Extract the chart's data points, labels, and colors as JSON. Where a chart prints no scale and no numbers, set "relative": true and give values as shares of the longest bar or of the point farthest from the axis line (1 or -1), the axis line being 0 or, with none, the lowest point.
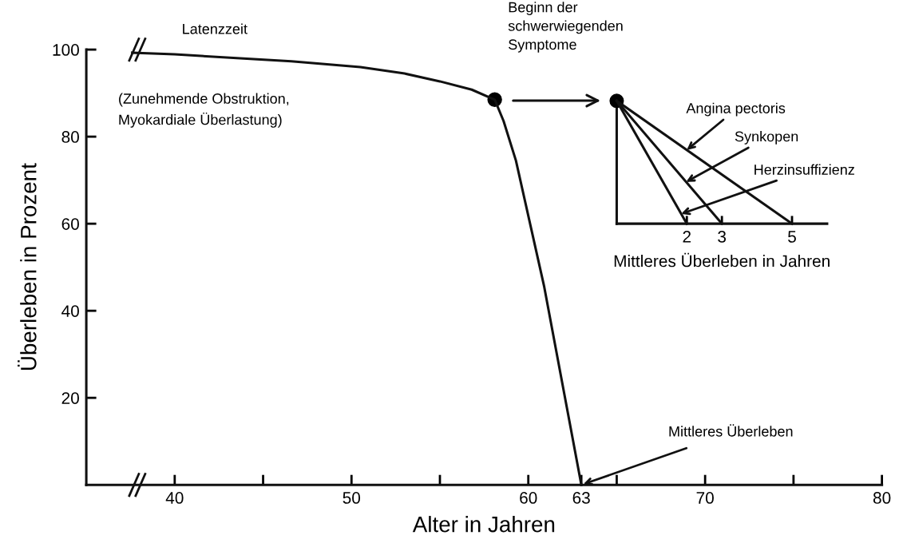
{
  "chart_data": [
    {
      "type": "line",
      "xlabel": "Alter in Jahren",
      "ylabel": "Überleben in Prozent",
      "xlim": [
        35,
        80
      ],
      "ylim": [
        0,
        100
      ],
      "xticks": [
        40,
        {
          "value": 45,
          "label": null
        },
        50,
        {
          "value": 55,
          "label": null
        },
        60,
        63,
        {
          "value": 65,
          "label": null
        },
        70,
        {
          "value": 75,
          "label": null
        },
        80
      ],
      "yticks": [
        20,
        40,
        60,
        80,
        100
      ],
      "series": [
        {
          "type": "line",
          "color": "#111111",
          "x": [
            37.6,
            40,
            43.7,
            46.6,
            50.5,
            53,
            55,
            56.8,
            58.1,
            58.6,
            59.3,
            60.9,
            63
          ],
          "values": [
            99.3,
            98.9,
            98,
            97.3,
            96,
            94.5,
            92.7,
            90.8,
            88.5,
            83.6,
            74.5,
            45.5,
            0
          ]
        },
        {
          "type": "scatter",
          "color": "#000000",
          "marker": "circle",
          "x": [
            58.1
          ],
          "values": [
            88.5
          ]
        }
      ],
      "annotations": [
        "Latenzzeit",
        "(Zunehmende Obstruktion,\nMyokardiale Überlastung)",
        "Beginn der\nschwerwiegenden\nSymptome",
        {
          "text": "Mittleres Überleben",
          "x": 63,
          "y": 0
        }
      ]
    },
    {
      "type": "line",
      "relative": true,
      "xlabel": "Mittleres Überleben in Jahren",
      "xlim": [
        0,
        6
      ],
      "xticks": [
        2,
        3,
        5
      ],
      "tick_labels": "x",
      "series": [
        {
          "color": "#111111",
          "x": [
            0,
            5
          ],
          "values": [
            1,
            0
          ]
        },
        {
          "color": "#111111",
          "x": [
            0,
            3
          ],
          "values": [
            1,
            0
          ]
        },
        {
          "color": "#111111",
          "x": [
            0,
            2
          ],
          "values": [
            1,
            0
          ]
        }
      ],
      "annotations": [
        {
          "text": "Angina pectoris",
          "x": 2,
          "y": 0.6
        },
        {
          "text": "Synkopen",
          "x": 1.98,
          "y": 0.34
        },
        {
          "text": "Herzinsuffizienz",
          "x": 1.84,
          "y": 0.08
        }
      ]
    }
  ]
}
